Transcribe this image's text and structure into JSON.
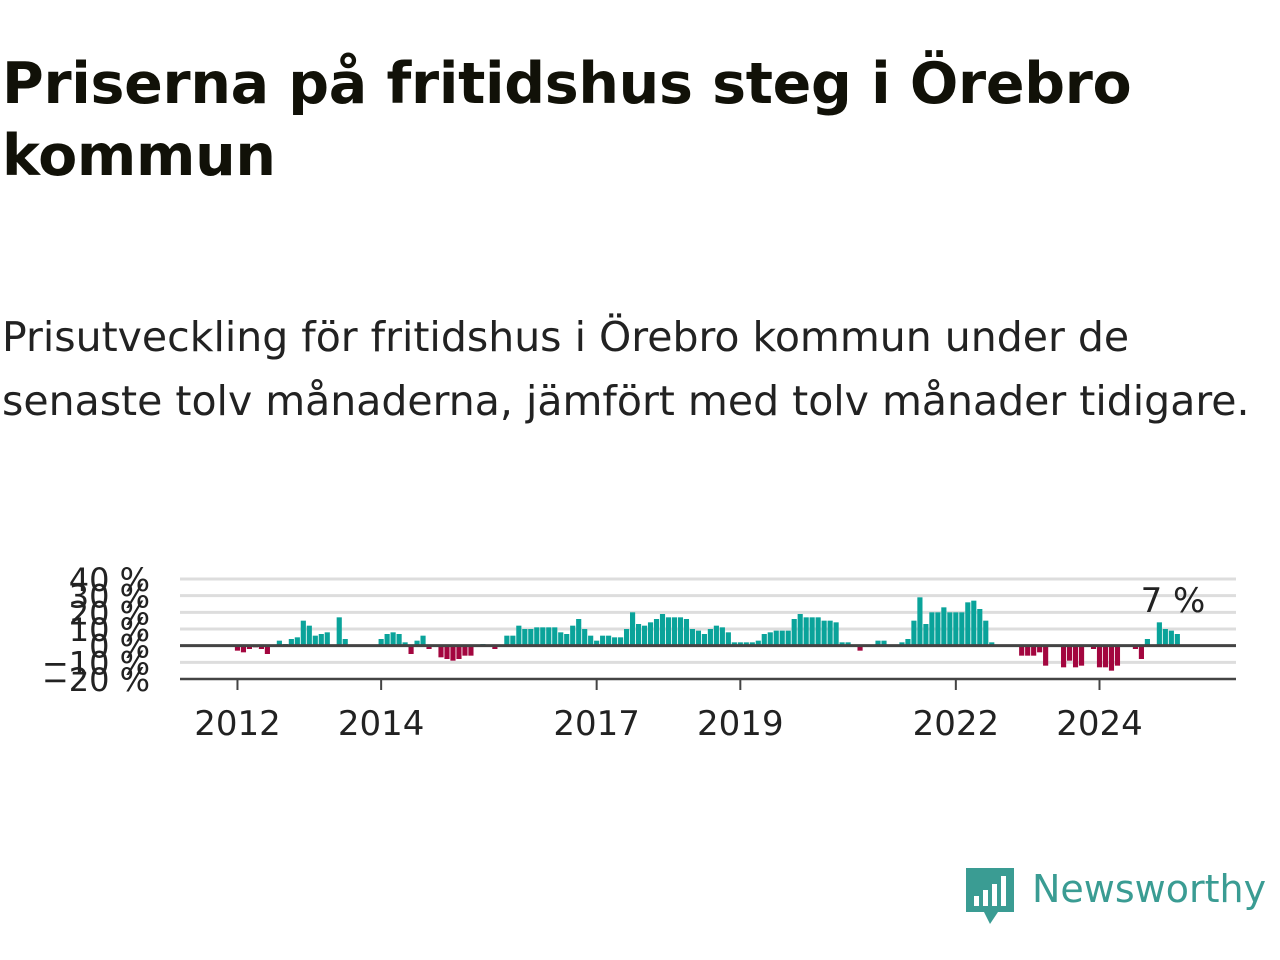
{
  "title": "Priserna på fritidshus steg i Örebro kommun",
  "subtitle": "Prisutveckling för fritidshus i Örebro kommun under de senaste tolv månaderna, jämfört med tolv månader tidigare.",
  "brand": {
    "name": "Newsworthy",
    "color": "#3a9c93",
    "icon": "newsworthy-logo-icon"
  },
  "colors": {
    "positive": "#0aa39a",
    "negative": "#a3063f",
    "zero_line": "#444444",
    "grid": "#dddddd",
    "text": "#222222"
  },
  "chart_data": {
    "type": "bar",
    "title": "",
    "xlabel": "",
    "ylabel": "",
    "ylim": [
      -20,
      40
    ],
    "y_ticks": [
      -20,
      -10,
      0,
      10,
      20,
      30,
      40
    ],
    "y_tick_labels": [
      "−20 %",
      "−10 %",
      "0 %",
      "10 %",
      "20 %",
      "30 %",
      "40 %"
    ],
    "x_range": [
      2011.2,
      2025.9
    ],
    "x_ticks": [
      2012,
      2014,
      2017,
      2019,
      2022,
      2024
    ],
    "x_tick_labels": [
      "2012",
      "2014",
      "2017",
      "2019",
      "2022",
      "2024"
    ],
    "grid": true,
    "last_label": "7 %",
    "series": [
      {
        "start": "2012-01",
        "values": [
          -3,
          -4,
          -2,
          -1,
          -2,
          -5,
          0,
          3,
          1,
          4,
          5,
          15,
          12,
          6,
          7,
          8,
          0,
          17,
          4,
          0,
          0,
          0,
          0,
          0,
          4,
          7,
          8,
          7,
          2,
          -5,
          3,
          6,
          -2,
          0,
          -7,
          -8,
          -9,
          -8,
          -6,
          -6,
          0,
          1,
          0,
          -2,
          0,
          6,
          6,
          12,
          10,
          10,
          11,
          11,
          11,
          11,
          8,
          7,
          12,
          16,
          10,
          6,
          3,
          6,
          6,
          5,
          5,
          10,
          20,
          13,
          12,
          14,
          16,
          19,
          17,
          17,
          17,
          16,
          10,
          9,
          7,
          10,
          12,
          11,
          8,
          2,
          2,
          2,
          2,
          3,
          7,
          8,
          9,
          9,
          9,
          16,
          19,
          17,
          17,
          17,
          15,
          15,
          14,
          2,
          2,
          0,
          -3,
          0,
          0,
          3,
          3,
          0,
          0,
          2,
          4,
          15,
          29,
          13,
          20,
          20,
          23,
          20,
          20,
          20,
          26,
          27,
          22,
          15,
          2,
          0,
          0,
          0,
          0,
          -6,
          -6,
          -6,
          -4,
          -12,
          0,
          0,
          -13,
          -9,
          -13,
          -12,
          0,
          -2,
          -13,
          -13,
          -15,
          -12,
          0,
          0,
          -2,
          -8,
          4,
          0,
          14,
          10,
          9,
          7
        ]
      }
    ]
  }
}
